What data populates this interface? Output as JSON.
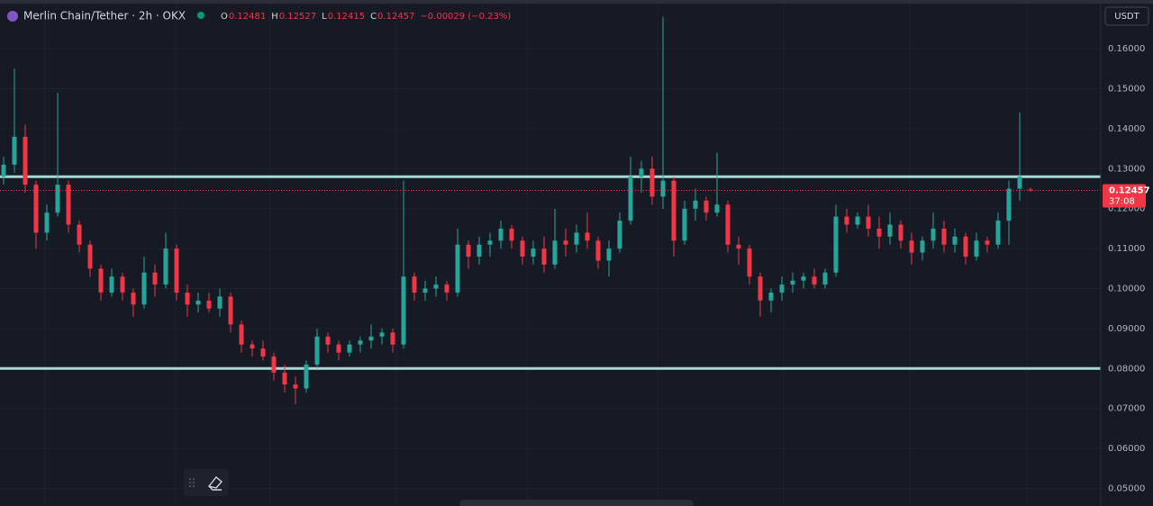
{
  "chart_data": {
    "type": "candlestick",
    "title": "Merlin Chain/Tether · 2h · OKX",
    "ohlc_labels": [
      "O",
      "H",
      "L",
      "C"
    ],
    "ohlc_values": [
      0.12481,
      0.12527,
      0.12415,
      0.12457
    ],
    "change": "−0.00029 (−0.23%)",
    "currency": "USDT",
    "last_price": 0.12457,
    "countdown": "37:08",
    "levels": [
      0.128,
      0.08
    ],
    "level_color": "#a8d8d2",
    "up_color": "#26a69a",
    "down_color": "#f23645",
    "ylim": [
      0.0456,
      0.1722
    ],
    "yticks": [
      {
        "value": 0.05,
        "label": "0.05000"
      },
      {
        "value": 0.06,
        "label": "0.06000"
      },
      {
        "value": 0.07,
        "label": "0.07000"
      },
      {
        "value": 0.08,
        "label": "0.08000"
      },
      {
        "value": 0.09,
        "label": "0.09000"
      },
      {
        "value": 0.1,
        "label": "0.10000"
      },
      {
        "value": 0.11,
        "label": "0.11000"
      },
      {
        "value": 0.12,
        "label": "0.12000"
      },
      {
        "value": 0.13,
        "label": "0.13000"
      },
      {
        "value": 0.14,
        "label": "0.14000"
      },
      {
        "value": 0.15,
        "label": "0.15000"
      },
      {
        "value": 0.16,
        "label": "0.16000"
      }
    ],
    "grid": true,
    "candles": [
      [
        0.128,
        0.133,
        0.126,
        0.131
      ],
      [
        0.131,
        0.155,
        0.129,
        0.138
      ],
      [
        0.138,
        0.141,
        0.124,
        0.126
      ],
      [
        0.126,
        0.127,
        0.11,
        0.114
      ],
      [
        0.114,
        0.121,
        0.112,
        0.119
      ],
      [
        0.119,
        0.149,
        0.118,
        0.126
      ],
      [
        0.126,
        0.127,
        0.114,
        0.116
      ],
      [
        0.116,
        0.117,
        0.109,
        0.111
      ],
      [
        0.111,
        0.112,
        0.103,
        0.105
      ],
      [
        0.105,
        0.106,
        0.097,
        0.099
      ],
      [
        0.099,
        0.105,
        0.098,
        0.103
      ],
      [
        0.103,
        0.104,
        0.097,
        0.099
      ],
      [
        0.099,
        0.1,
        0.093,
        0.096
      ],
      [
        0.096,
        0.108,
        0.095,
        0.104
      ],
      [
        0.104,
        0.106,
        0.098,
        0.101
      ],
      [
        0.101,
        0.114,
        0.1,
        0.11
      ],
      [
        0.11,
        0.111,
        0.097,
        0.099
      ],
      [
        0.099,
        0.101,
        0.093,
        0.096
      ],
      [
        0.096,
        0.099,
        0.094,
        0.097
      ],
      [
        0.097,
        0.099,
        0.094,
        0.095
      ],
      [
        0.095,
        0.1,
        0.093,
        0.098
      ],
      [
        0.098,
        0.099,
        0.089,
        0.091
      ],
      [
        0.091,
        0.092,
        0.084,
        0.086
      ],
      [
        0.086,
        0.087,
        0.083,
        0.085
      ],
      [
        0.085,
        0.087,
        0.082,
        0.083
      ],
      [
        0.083,
        0.084,
        0.077,
        0.079
      ],
      [
        0.079,
        0.081,
        0.074,
        0.076
      ],
      [
        0.076,
        0.078,
        0.071,
        0.075
      ],
      [
        0.075,
        0.082,
        0.074,
        0.081
      ],
      [
        0.081,
        0.09,
        0.08,
        0.088
      ],
      [
        0.088,
        0.089,
        0.084,
        0.086
      ],
      [
        0.086,
        0.087,
        0.082,
        0.084
      ],
      [
        0.084,
        0.087,
        0.083,
        0.086
      ],
      [
        0.086,
        0.088,
        0.084,
        0.087
      ],
      [
        0.087,
        0.091,
        0.085,
        0.088
      ],
      [
        0.088,
        0.09,
        0.086,
        0.089
      ],
      [
        0.089,
        0.09,
        0.084,
        0.086
      ],
      [
        0.086,
        0.127,
        0.085,
        0.103
      ],
      [
        0.103,
        0.104,
        0.097,
        0.099
      ],
      [
        0.099,
        0.102,
        0.097,
        0.1
      ],
      [
        0.1,
        0.103,
        0.098,
        0.101
      ],
      [
        0.101,
        0.102,
        0.097,
        0.099
      ],
      [
        0.099,
        0.115,
        0.098,
        0.111
      ],
      [
        0.111,
        0.112,
        0.105,
        0.108
      ],
      [
        0.108,
        0.113,
        0.106,
        0.111
      ],
      [
        0.111,
        0.114,
        0.108,
        0.112
      ],
      [
        0.112,
        0.117,
        0.11,
        0.115
      ],
      [
        0.115,
        0.116,
        0.11,
        0.112
      ],
      [
        0.112,
        0.113,
        0.106,
        0.108
      ],
      [
        0.108,
        0.112,
        0.106,
        0.11
      ],
      [
        0.11,
        0.113,
        0.104,
        0.106
      ],
      [
        0.106,
        0.12,
        0.105,
        0.112
      ],
      [
        0.112,
        0.115,
        0.108,
        0.111
      ],
      [
        0.111,
        0.116,
        0.109,
        0.114
      ],
      [
        0.114,
        0.119,
        0.11,
        0.112
      ],
      [
        0.112,
        0.113,
        0.105,
        0.107
      ],
      [
        0.107,
        0.112,
        0.103,
        0.11
      ],
      [
        0.11,
        0.119,
        0.109,
        0.117
      ],
      [
        0.117,
        0.133,
        0.116,
        0.128
      ],
      [
        0.128,
        0.132,
        0.124,
        0.13
      ],
      [
        0.13,
        0.133,
        0.121,
        0.123
      ],
      [
        0.123,
        0.168,
        0.12,
        0.127
      ],
      [
        0.127,
        0.128,
        0.108,
        0.112
      ],
      [
        0.112,
        0.122,
        0.111,
        0.12
      ],
      [
        0.12,
        0.125,
        0.117,
        0.122
      ],
      [
        0.122,
        0.123,
        0.117,
        0.119
      ],
      [
        0.119,
        0.134,
        0.118,
        0.121
      ],
      [
        0.121,
        0.122,
        0.109,
        0.111
      ],
      [
        0.111,
        0.113,
        0.106,
        0.11
      ],
      [
        0.11,
        0.111,
        0.101,
        0.103
      ],
      [
        0.103,
        0.104,
        0.093,
        0.097
      ],
      [
        0.097,
        0.1,
        0.094,
        0.099
      ],
      [
        0.099,
        0.103,
        0.097,
        0.101
      ],
      [
        0.101,
        0.104,
        0.099,
        0.102
      ],
      [
        0.102,
        0.104,
        0.1,
        0.103
      ],
      [
        0.103,
        0.105,
        0.1,
        0.101
      ],
      [
        0.101,
        0.105,
        0.1,
        0.104
      ],
      [
        0.104,
        0.121,
        0.103,
        0.118
      ],
      [
        0.118,
        0.12,
        0.114,
        0.116
      ],
      [
        0.116,
        0.119,
        0.115,
        0.118
      ],
      [
        0.118,
        0.121,
        0.113,
        0.115
      ],
      [
        0.115,
        0.118,
        0.11,
        0.113
      ],
      [
        0.113,
        0.119,
        0.111,
        0.116
      ],
      [
        0.116,
        0.117,
        0.11,
        0.112
      ],
      [
        0.112,
        0.114,
        0.106,
        0.109
      ],
      [
        0.109,
        0.113,
        0.107,
        0.112
      ],
      [
        0.112,
        0.119,
        0.11,
        0.115
      ],
      [
        0.115,
        0.117,
        0.109,
        0.111
      ],
      [
        0.111,
        0.115,
        0.109,
        0.113
      ],
      [
        0.113,
        0.114,
        0.106,
        0.108
      ],
      [
        0.108,
        0.114,
        0.107,
        0.112
      ],
      [
        0.112,
        0.113,
        0.109,
        0.111
      ],
      [
        0.111,
        0.119,
        0.11,
        0.117
      ],
      [
        0.117,
        0.127,
        0.111,
        0.125
      ],
      [
        0.125,
        0.144,
        0.122,
        0.128
      ],
      [
        0.12481,
        0.12527,
        0.12415,
        0.12457
      ]
    ]
  }
}
